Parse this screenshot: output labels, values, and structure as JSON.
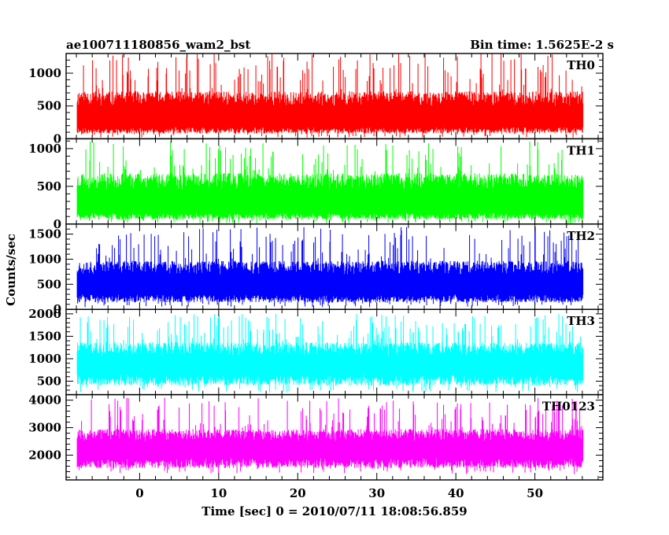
{
  "header": {
    "title": "ae100711180856_wam2_bst",
    "bin_time": "Bin time: 1.5625E-2 s"
  },
  "chart_data": {
    "type": "line",
    "xlabel": "Time [sec] 0 = 2010/07/11 18:08:56.859",
    "ylabel": "Counts/sec",
    "xlim": [
      -9.3,
      58.6
    ],
    "x_range": [
      -7.9,
      56.1
    ],
    "x_ticks": [
      0,
      10,
      20,
      30,
      40,
      50
    ],
    "panels": [
      {
        "name": "TH0",
        "color": "#ff0000",
        "ylim": [
          0,
          1300
        ],
        "y_ticks": [
          0,
          500,
          1000
        ],
        "base_range": [
          180,
          750
        ],
        "spike_max": 1300,
        "dip_min": 20,
        "seed": 11
      },
      {
        "name": "TH1",
        "color": "#00ff00",
        "ylim": [
          0,
          1130
        ],
        "y_ticks": [
          0,
          500,
          1000
        ],
        "base_range": [
          150,
          700
        ],
        "spike_max": 1100,
        "dip_min": 10,
        "seed": 23
      },
      {
        "name": "TH2",
        "color": "#0000ff",
        "ylim": [
          0,
          1700
        ],
        "y_ticks": [
          0,
          500,
          1000,
          1500
        ],
        "base_range": [
          300,
          1000
        ],
        "spike_max": 1650,
        "dip_min": 40,
        "seed": 37
      },
      {
        "name": "TH3",
        "color": "#00ffff",
        "ylim": [
          200,
          2100
        ],
        "y_ticks": [
          500,
          1000,
          1500,
          2000
        ],
        "base_range": [
          650,
          1400
        ],
        "spike_max": 2000,
        "dip_min": 250,
        "seed": 41
      },
      {
        "name": "TH0123",
        "color": "#ff00ff",
        "ylim": [
          1100,
          4200
        ],
        "y_ticks": [
          2000,
          3000,
          4000
        ],
        "base_range": [
          1900,
          3000
        ],
        "spike_max": 4100,
        "dip_min": 1300,
        "seed": 53
      }
    ]
  }
}
